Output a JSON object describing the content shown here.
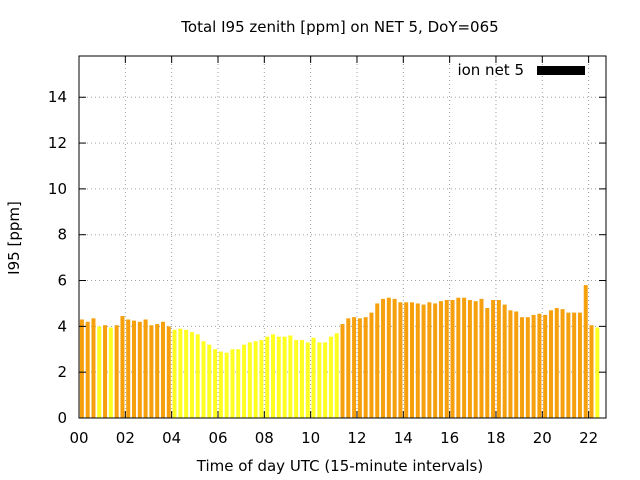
{
  "chart_data": {
    "type": "bar",
    "title": "Total I95 zenith [ppm] on NET 5, DoY=065",
    "xlabel": "Time of day UTC (15-minute intervals)",
    "ylabel": "I95 [ppm]",
    "xlim": [
      0,
      22.75
    ],
    "ylim": [
      0,
      15.8
    ],
    "x_ticks": [
      "00",
      "02",
      "04",
      "06",
      "08",
      "10",
      "12",
      "14",
      "16",
      "18",
      "20",
      "22"
    ],
    "y_ticks": [
      "0",
      "2",
      "4",
      "6",
      "8",
      "10",
      "12",
      "14"
    ],
    "grid": true,
    "legend": {
      "position": "top-right",
      "label": "ion net 5",
      "color": "#000000"
    },
    "bar_width_hours": 0.25,
    "colors": {
      "low": "#ffff22",
      "high": "#f5a00c"
    },
    "values": [
      4.3,
      4.2,
      4.35,
      4.0,
      4.05,
      3.95,
      4.05,
      4.45,
      4.3,
      4.25,
      4.2,
      4.3,
      4.05,
      4.1,
      4.2,
      4.0,
      3.85,
      3.9,
      3.85,
      3.75,
      3.65,
      3.35,
      3.2,
      3.0,
      2.9,
      2.85,
      3.0,
      3.0,
      3.2,
      3.3,
      3.35,
      3.4,
      3.55,
      3.65,
      3.55,
      3.55,
      3.6,
      3.4,
      3.4,
      3.3,
      3.5,
      3.3,
      3.3,
      3.55,
      3.7,
      4.1,
      4.35,
      4.4,
      4.35,
      4.4,
      4.6,
      5.0,
      5.2,
      5.25,
      5.2,
      5.05,
      5.05,
      5.05,
      5.0,
      4.95,
      5.05,
      5.0,
      5.1,
      5.15,
      5.15,
      5.25,
      5.25,
      5.15,
      5.1,
      5.2,
      4.8,
      5.15,
      5.15,
      4.95,
      4.7,
      4.65,
      4.4,
      4.4,
      4.5,
      4.55,
      4.5,
      4.7,
      4.8,
      4.75,
      4.6,
      4.6,
      4.6,
      5.8,
      4.05,
      3.95
    ],
    "bar_colors": [
      "high",
      "high",
      "high",
      "low",
      "high",
      "low",
      "high",
      "high",
      "high",
      "high",
      "high",
      "high",
      "high",
      "high",
      "high",
      "high",
      "low",
      "low",
      "low",
      "low",
      "low",
      "low",
      "low",
      "low",
      "low",
      "low",
      "low",
      "low",
      "low",
      "low",
      "low",
      "low",
      "low",
      "low",
      "low",
      "low",
      "low",
      "low",
      "low",
      "low",
      "low",
      "low",
      "low",
      "low",
      "low",
      "high",
      "high",
      "high",
      "high",
      "high",
      "high",
      "high",
      "high",
      "high",
      "high",
      "high",
      "high",
      "high",
      "high",
      "high",
      "high",
      "high",
      "high",
      "high",
      "high",
      "high",
      "high",
      "high",
      "high",
      "high",
      "high",
      "high",
      "high",
      "high",
      "high",
      "high",
      "high",
      "high",
      "high",
      "high",
      "high",
      "high",
      "high",
      "high",
      "high",
      "high",
      "high",
      "high",
      "high",
      "low"
    ]
  }
}
